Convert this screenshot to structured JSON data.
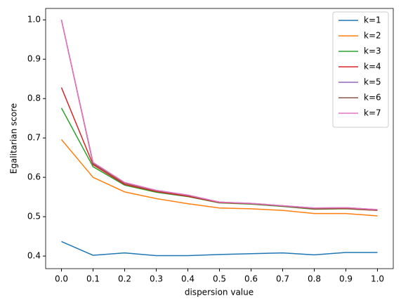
{
  "chart_data": {
    "type": "line",
    "x_label": "dispersion value",
    "y_label": "Egalitarian score",
    "x": [
      0.0,
      0.1,
      0.2,
      0.3,
      0.4,
      0.5,
      0.6,
      0.7,
      0.8,
      0.9,
      1.0
    ],
    "xlim": [
      -0.05,
      1.05
    ],
    "xticks": [
      {
        "value": 0.0,
        "label": "0.0"
      },
      0.1,
      0.2,
      0.3,
      0.4,
      0.5,
      0.6,
      0.7,
      0.8,
      0.9,
      {
        "value": 1.0,
        "label": "1.0"
      }
    ],
    "ylim": [
      0.368,
      1.029
    ],
    "yticks": [
      0.4,
      0.5,
      0.6,
      0.7,
      0.8,
      0.9,
      {
        "value": 1.0,
        "label": "1.0"
      }
    ],
    "legend": "upper right",
    "series": [
      {
        "name": "k=1",
        "color": "#1f77b4",
        "values": [
          0.437,
          0.402,
          0.408,
          0.401,
          0.401,
          0.404,
          0.406,
          0.408,
          0.403,
          0.409,
          0.409
        ]
      },
      {
        "name": "k=2",
        "color": "#ff7f0e",
        "values": [
          0.696,
          0.6,
          0.563,
          0.546,
          0.533,
          0.522,
          0.52,
          0.516,
          0.508,
          0.508,
          0.502
        ]
      },
      {
        "name": "k=3",
        "color": "#2ca02c",
        "values": [
          0.776,
          0.627,
          0.58,
          0.562,
          0.551,
          0.535,
          0.532,
          0.526,
          0.519,
          0.52,
          0.516
        ]
      },
      {
        "name": "k=4",
        "color": "#d62728",
        "values": [
          0.828,
          0.632,
          0.582,
          0.564,
          0.552,
          0.536,
          0.533,
          0.527,
          0.52,
          0.521,
          0.516
        ]
      },
      {
        "name": "k=5",
        "color": "#9467bd",
        "values": [
          1.0,
          0.637,
          0.586,
          0.567,
          0.555,
          0.537,
          0.534,
          0.528,
          0.522,
          0.523,
          0.518
        ]
      },
      {
        "name": "k=6",
        "color": "#8c564b",
        "values": [
          1.0,
          0.635,
          0.585,
          0.566,
          0.554,
          0.537,
          0.533,
          0.527,
          0.521,
          0.522,
          0.517
        ]
      },
      {
        "name": "k=7",
        "color": "#e377c2",
        "values": [
          1.0,
          0.638,
          0.587,
          0.567,
          0.555,
          0.537,
          0.534,
          0.528,
          0.522,
          0.523,
          0.518
        ]
      }
    ]
  }
}
